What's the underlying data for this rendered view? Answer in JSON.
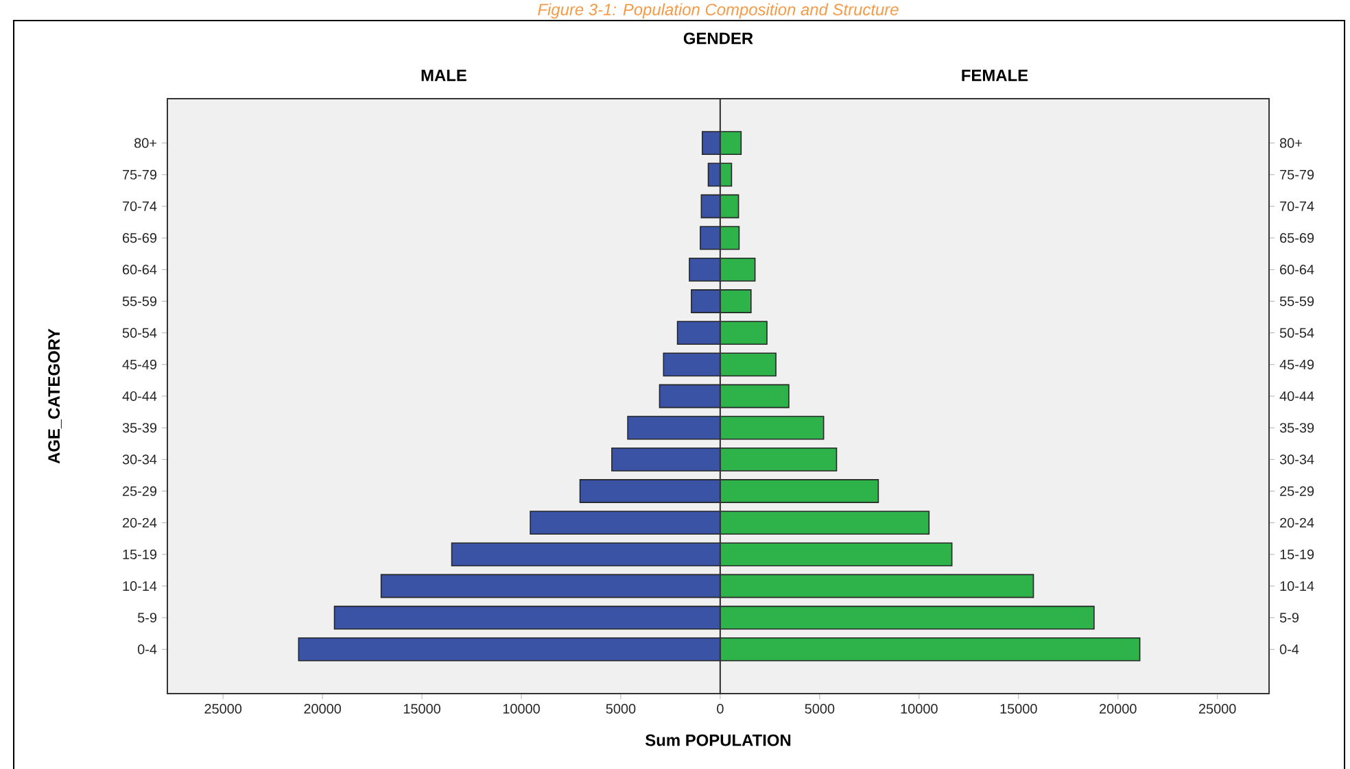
{
  "chart_data": [
    {
      "type": "bar",
      "orientation": "horizontal",
      "title": "MALE",
      "ylabel": "AGE_CATEGORY",
      "xlabel": "Sum POPULATION",
      "annotations": [
        "Figure 3-1: Population Composition and Structure",
        "GENDER"
      ],
      "categories": [
        "80+",
        "75-79",
        "70-74",
        "65-69",
        "60-64",
        "55-59",
        "50-54",
        "45-49",
        "40-44",
        "35-39",
        "30-34",
        "25-29",
        "20-24",
        "15-19",
        "10-14",
        "5-9",
        "0-4"
      ],
      "values": [
        900,
        600,
        950,
        1000,
        1550,
        1450,
        2150,
        2850,
        3050,
        4650,
        5450,
        7050,
        9550,
        13500,
        17050,
        19400,
        21200
      ],
      "color": "#3a53a4",
      "xlim": [
        27800,
        0
      ],
      "xticks": [
        25000,
        20000,
        15000,
        10000,
        5000
      ]
    },
    {
      "type": "bar",
      "orientation": "horizontal",
      "title": "FEMALE",
      "categories": [
        "80+",
        "75-79",
        "70-74",
        "65-69",
        "60-64",
        "55-59",
        "50-54",
        "45-49",
        "40-44",
        "35-39",
        "30-34",
        "25-29",
        "20-24",
        "15-19",
        "10-14",
        "5-9",
        "0-4"
      ],
      "values": [
        1050,
        570,
        920,
        950,
        1750,
        1550,
        2350,
        2800,
        3450,
        5200,
        5850,
        7950,
        10500,
        11650,
        15750,
        18800,
        21100
      ],
      "color": "#2db34a",
      "xlim": [
        0,
        27600
      ],
      "xticks": [
        0,
        5000,
        10000,
        15000,
        20000,
        25000
      ]
    }
  ]
}
